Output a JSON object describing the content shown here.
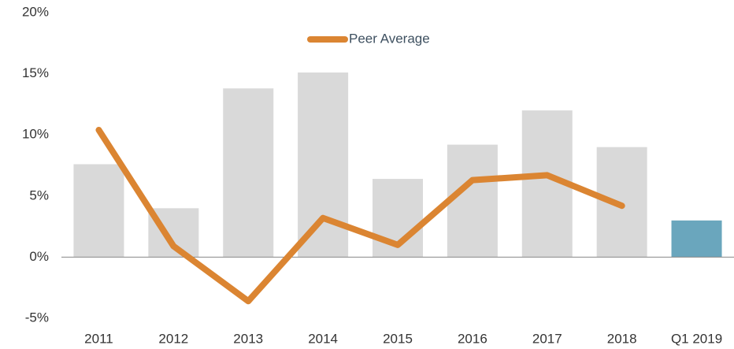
{
  "chart_data": {
    "type": "bar-line",
    "categories": [
      "2011",
      "2012",
      "2013",
      "2014",
      "2015",
      "2016",
      "2017",
      "2018",
      "Q1 2019"
    ],
    "values": [
      7.6,
      4.0,
      13.8,
      15.1,
      6.4,
      9.2,
      12.0,
      9.0,
      3.0
    ],
    "colors": [
      "#d9d9d9",
      "#d9d9d9",
      "#d9d9d9",
      "#d9d9d9",
      "#d9d9d9",
      "#d9d9d9",
      "#d9d9d9",
      "#d9d9d9",
      "#6aa6bd"
    ],
    "line": {
      "name": "Peer Average",
      "color": "#db8532",
      "values": [
        10.4,
        0.9,
        -3.6,
        3.2,
        1.0,
        6.3,
        6.7,
        4.2,
        null
      ]
    },
    "ylim": [
      -5,
      20
    ],
    "yticks": [
      {
        "value": -5,
        "label": "-5%"
      },
      {
        "value": 0,
        "label": "0%"
      },
      {
        "value": 5,
        "label": "5%"
      },
      {
        "value": 10,
        "label": "10%"
      },
      {
        "value": 15,
        "label": "15%"
      },
      {
        "value": 20,
        "label": "20%"
      }
    ],
    "legend": "top"
  }
}
